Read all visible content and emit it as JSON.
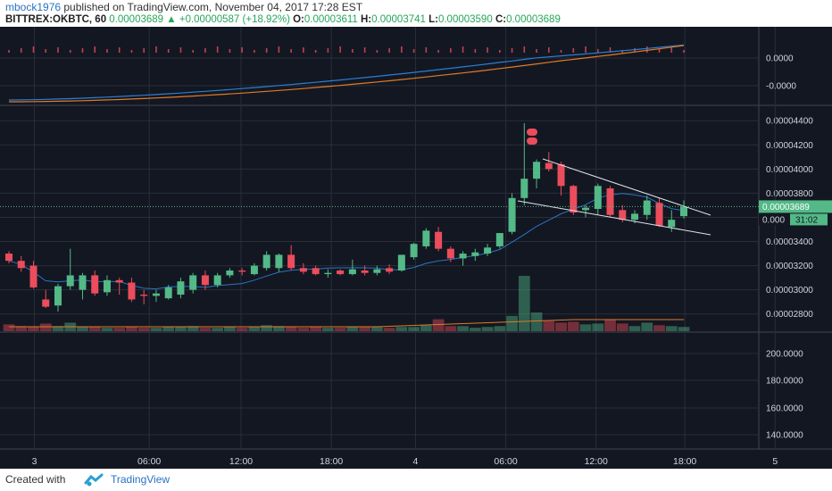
{
  "header": {
    "publisher": "mbock1976",
    "published_text": " published on TradingView.com, November 04, 2017 17:28 EST",
    "symbol": "BITTREX:OKBTC, 60",
    "last": "0.00003689",
    "change_arrow": "▲",
    "change": "+0.00000587 (+18.92%)",
    "o_label": "O:",
    "o": "0.00003611",
    "h_label": "H:",
    "h": "0.00003741",
    "l_label": "L:",
    "l": "0.00003590",
    "c_label": "C:",
    "c": "0.00003689"
  },
  "footer": {
    "created": "Created with",
    "brand": "TradingView"
  },
  "chart_data": {
    "type": "candlestick",
    "colors": {
      "up": "#53b987",
      "down": "#eb4d5c",
      "background": "#131722",
      "ma": "#2a7fd4",
      "ma_slow": "#e07b26"
    },
    "price_axis": {
      "min": 2.65e-05,
      "max": 4.52e-05,
      "ticks": [
        "0.00004400",
        "0.00004200",
        "0.00004000",
        "0.00003800",
        "0.00003600",
        "0.00003400",
        "0.00003200",
        "0.00003000",
        "0.00002800"
      ]
    },
    "current_price_label": "0.00003689",
    "countdown_label": "31:02",
    "partial_price_label": "0.000",
    "x_labels": [
      "3",
      "06:00",
      "12:00",
      "18:00",
      "4",
      "06:00",
      "12:00",
      "18:00",
      "5"
    ],
    "indicator_top": {
      "ticks": [
        "0.0000",
        "-0.0000"
      ]
    },
    "indicator_bottom": {
      "ticks": [
        "200.0000",
        "180.0000",
        "160.0000",
        "140.0000"
      ]
    },
    "candles": [
      {
        "o": 3.3,
        "h": 3.32,
        "l": 3.22,
        "c": 3.24
      },
      {
        "o": 3.24,
        "h": 3.28,
        "l": 3.15,
        "c": 3.18
      },
      {
        "o": 3.2,
        "h": 3.24,
        "l": 3.01,
        "c": 3.02
      },
      {
        "o": 2.92,
        "h": 3.0,
        "l": 2.85,
        "c": 2.86
      },
      {
        "o": 2.87,
        "h": 3.05,
        "l": 2.82,
        "c": 3.03
      },
      {
        "o": 3.03,
        "h": 3.34,
        "l": 3.0,
        "c": 3.12
      },
      {
        "o": 3.0,
        "h": 3.14,
        "l": 2.92,
        "c": 3.12
      },
      {
        "o": 3.12,
        "h": 3.16,
        "l": 2.95,
        "c": 2.97
      },
      {
        "o": 2.98,
        "h": 3.12,
        "l": 2.95,
        "c": 3.08
      },
      {
        "o": 3.08,
        "h": 3.1,
        "l": 2.96,
        "c": 3.06
      },
      {
        "o": 3.06,
        "h": 3.1,
        "l": 2.9,
        "c": 2.92
      },
      {
        "o": 2.96,
        "h": 3.0,
        "l": 2.88,
        "c": 2.95
      },
      {
        "o": 2.95,
        "h": 3.0,
        "l": 2.9,
        "c": 2.97
      },
      {
        "o": 2.93,
        "h": 3.04,
        "l": 2.92,
        "c": 3.02
      },
      {
        "o": 2.96,
        "h": 3.1,
        "l": 2.93,
        "c": 3.07
      },
      {
        "o": 3.0,
        "h": 3.14,
        "l": 2.97,
        "c": 3.12
      },
      {
        "o": 3.12,
        "h": 3.16,
        "l": 3.0,
        "c": 3.04
      },
      {
        "o": 3.04,
        "h": 3.14,
        "l": 3.02,
        "c": 3.12
      },
      {
        "o": 3.12,
        "h": 3.18,
        "l": 3.1,
        "c": 3.16
      },
      {
        "o": 3.16,
        "h": 3.18,
        "l": 3.12,
        "c": 3.15
      },
      {
        "o": 3.13,
        "h": 3.22,
        "l": 3.12,
        "c": 3.2
      },
      {
        "o": 3.18,
        "h": 3.32,
        "l": 3.16,
        "c": 3.29
      },
      {
        "o": 3.18,
        "h": 3.3,
        "l": 3.15,
        "c": 3.29
      },
      {
        "o": 3.29,
        "h": 3.37,
        "l": 3.16,
        "c": 3.18
      },
      {
        "o": 3.18,
        "h": 3.22,
        "l": 3.13,
        "c": 3.15
      },
      {
        "o": 3.18,
        "h": 3.2,
        "l": 3.12,
        "c": 3.13
      },
      {
        "o": 3.13,
        "h": 3.17,
        "l": 3.1,
        "c": 3.14
      },
      {
        "o": 3.16,
        "h": 3.17,
        "l": 3.12,
        "c": 3.13
      },
      {
        "o": 3.13,
        "h": 3.25,
        "l": 3.12,
        "c": 3.17
      },
      {
        "o": 3.16,
        "h": 3.2,
        "l": 3.12,
        "c": 3.14
      },
      {
        "o": 3.14,
        "h": 3.2,
        "l": 3.12,
        "c": 3.17
      },
      {
        "o": 3.18,
        "h": 3.21,
        "l": 3.13,
        "c": 3.15
      },
      {
        "o": 3.16,
        "h": 3.29,
        "l": 3.15,
        "c": 3.29
      },
      {
        "o": 3.27,
        "h": 3.39,
        "l": 3.25,
        "c": 3.38
      },
      {
        "o": 3.36,
        "h": 3.51,
        "l": 3.34,
        "c": 3.49
      },
      {
        "o": 3.48,
        "h": 3.52,
        "l": 3.32,
        "c": 3.34
      },
      {
        "o": 3.34,
        "h": 3.36,
        "l": 3.23,
        "c": 3.26
      },
      {
        "o": 3.26,
        "h": 3.32,
        "l": 3.2,
        "c": 3.3
      },
      {
        "o": 3.28,
        "h": 3.34,
        "l": 3.24,
        "c": 3.31
      },
      {
        "o": 3.3,
        "h": 3.38,
        "l": 3.28,
        "c": 3.35
      },
      {
        "o": 3.36,
        "h": 3.46,
        "l": 3.34,
        "c": 3.47
      },
      {
        "o": 3.48,
        "h": 3.8,
        "l": 3.46,
        "c": 3.76
      },
      {
        "o": 3.76,
        "h": 4.38,
        "l": 3.7,
        "c": 3.92
      },
      {
        "o": 3.92,
        "h": 4.08,
        "l": 3.84,
        "c": 4.06
      },
      {
        "o": 4.05,
        "h": 4.14,
        "l": 3.98,
        "c": 4.0
      },
      {
        "o": 4.04,
        "h": 4.06,
        "l": 3.78,
        "c": 3.86
      },
      {
        "o": 3.86,
        "h": 3.87,
        "l": 3.62,
        "c": 3.64
      },
      {
        "o": 3.66,
        "h": 3.7,
        "l": 3.6,
        "c": 3.68
      },
      {
        "o": 3.67,
        "h": 3.88,
        "l": 3.62,
        "c": 3.86
      },
      {
        "o": 3.84,
        "h": 3.86,
        "l": 3.6,
        "c": 3.62
      },
      {
        "o": 3.66,
        "h": 3.7,
        "l": 3.56,
        "c": 3.58
      },
      {
        "o": 3.58,
        "h": 3.66,
        "l": 3.55,
        "c": 3.63
      },
      {
        "o": 3.62,
        "h": 3.78,
        "l": 3.58,
        "c": 3.74
      },
      {
        "o": 3.72,
        "h": 3.76,
        "l": 3.52,
        "c": 3.53
      },
      {
        "o": 3.52,
        "h": 3.66,
        "l": 3.48,
        "c": 3.58
      },
      {
        "o": 3.61,
        "h": 3.74,
        "l": 3.59,
        "c": 3.69
      }
    ],
    "volumes": [
      8,
      6,
      5,
      9,
      6,
      10,
      5,
      5,
      4,
      4,
      5,
      4,
      4,
      5,
      5,
      6,
      4,
      4,
      5,
      4,
      5,
      7,
      6,
      5,
      4,
      5,
      4,
      4,
      5,
      5,
      5,
      4,
      5,
      5,
      7,
      14,
      6,
      6,
      4,
      5,
      6,
      18,
      65,
      22,
      12,
      10,
      11,
      8,
      9,
      14,
      9,
      6,
      10,
      7,
      6,
      5
    ]
  }
}
